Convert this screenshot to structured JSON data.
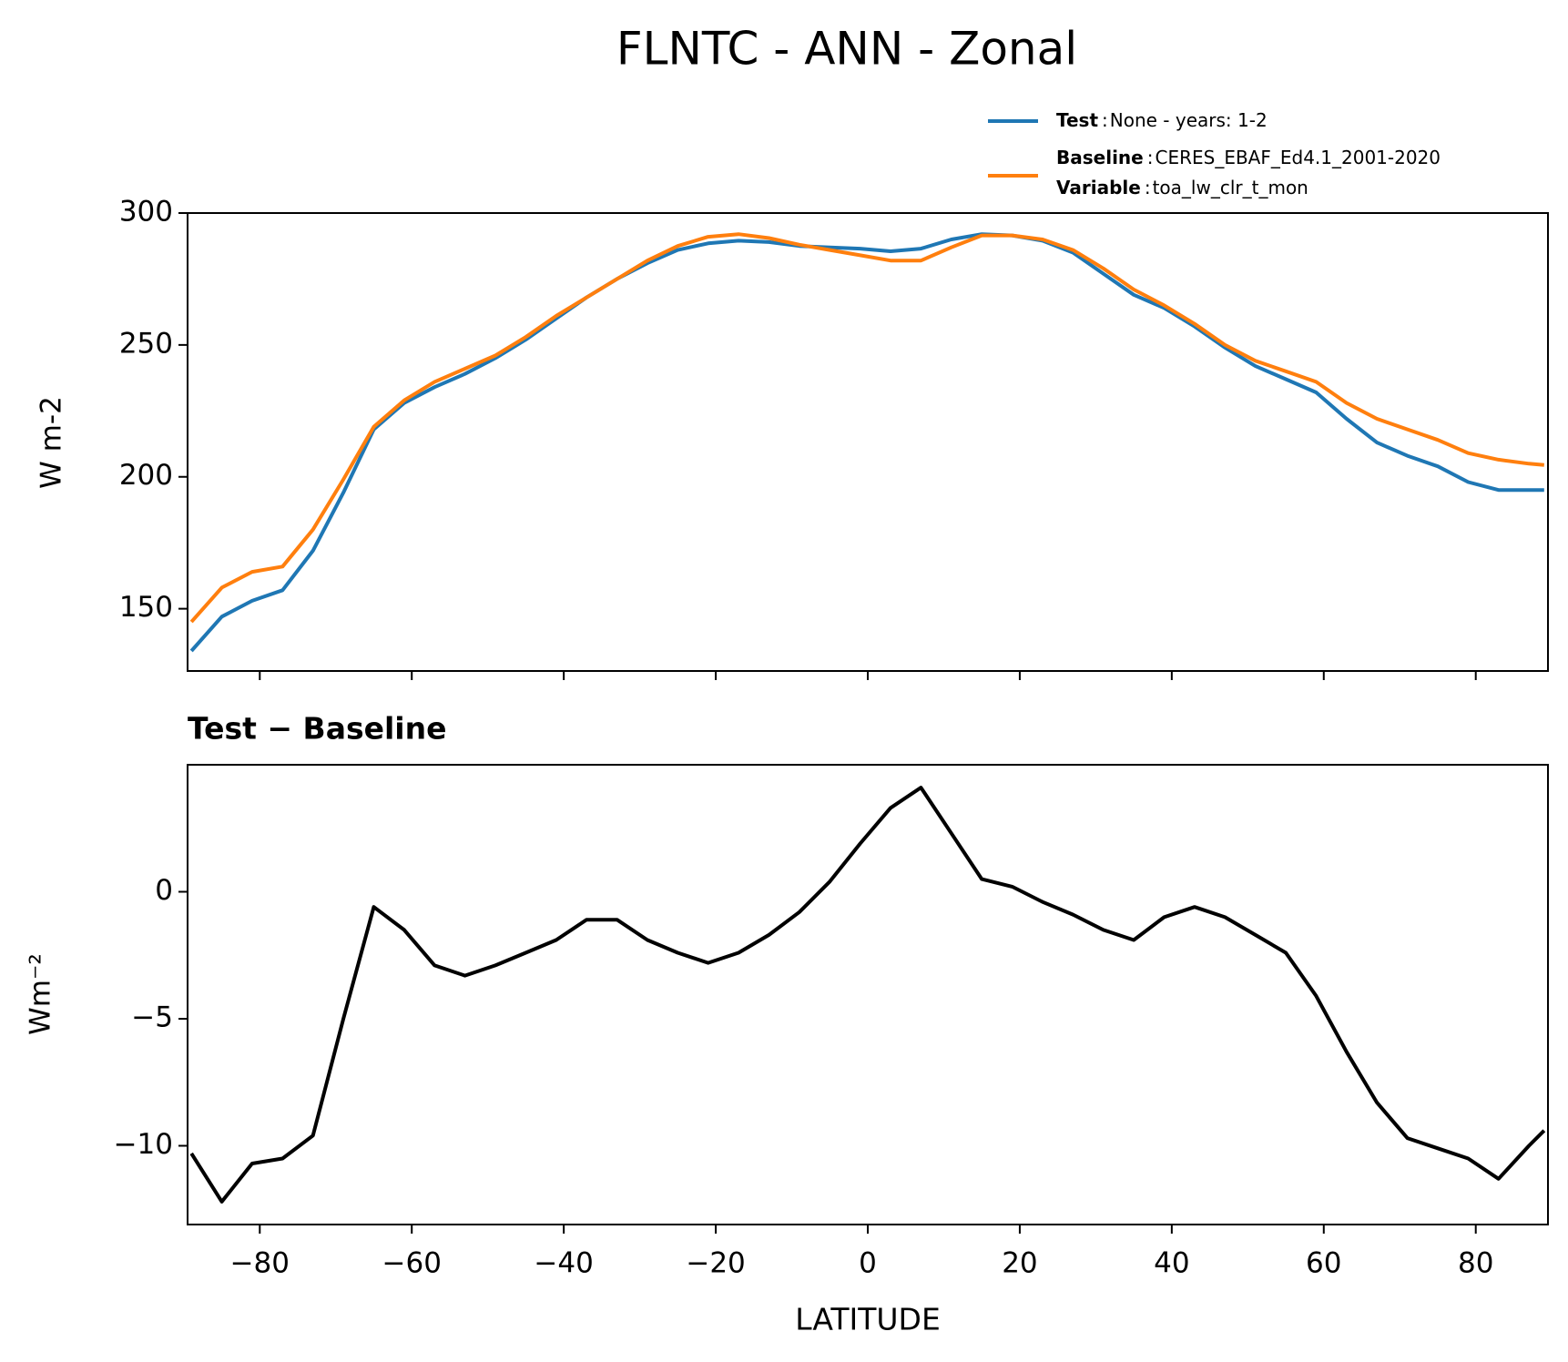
{
  "chart_data": [
    {
      "type": "line",
      "title": "FLNTC - ANN - Zonal",
      "ylabel": "W m-2",
      "x": [
        -89,
        -85,
        -81,
        -77,
        -73,
        -69,
        -65,
        -61,
        -57,
        -53,
        -49,
        -45,
        -41,
        -37,
        -33,
        -29,
        -25,
        -21,
        -17,
        -13,
        -9,
        -5,
        -1,
        3,
        7,
        11,
        15,
        19,
        23,
        27,
        31,
        35,
        39,
        43,
        47,
        51,
        55,
        59,
        63,
        67,
        71,
        75,
        79,
        83,
        87,
        89
      ],
      "separator": ":",
      "series": [
        {
          "name": "Test",
          "description": "None - years: 1-2",
          "color": "#1f77b4",
          "values": [
            134,
            147,
            153,
            157,
            172,
            194,
            218,
            228,
            234,
            239,
            245,
            252,
            260,
            268,
            275,
            281,
            286,
            288.5,
            289.5,
            289,
            287.5,
            287,
            286.5,
            285.5,
            286.5,
            290,
            292,
            291.5,
            289.5,
            285,
            277,
            269,
            264,
            257,
            249,
            242,
            237,
            232,
            222,
            213,
            208,
            204,
            198,
            195,
            195,
            195
          ]
        },
        {
          "name": "Baseline",
          "description": "CERES_EBAF_Ed4.1_2001-2020",
          "extra_name": "Variable",
          "extra_description": "toa_lw_clr_t_mon",
          "color": "#ff7f0e",
          "values": [
            145,
            158,
            164,
            166,
            180,
            199,
            219,
            229,
            236,
            241,
            246,
            253,
            261,
            268,
            275,
            282,
            287.5,
            291,
            292,
            290.5,
            288,
            286,
            284,
            282,
            282,
            287,
            291.5,
            291.5,
            290,
            286,
            279,
            271,
            265,
            258,
            250,
            244,
            240,
            236,
            228,
            222,
            218,
            214,
            209,
            206.5,
            205,
            204.5
          ]
        }
      ],
      "xlim": [
        -89.5,
        89.5
      ],
      "ylim": [
        126.4,
        300
      ],
      "xticks": [
        -80,
        -60,
        -40,
        -20,
        0,
        20,
        40,
        60,
        80
      ],
      "yticks": [
        150,
        200,
        250,
        300
      ]
    },
    {
      "type": "line",
      "title": "Test − Baseline",
      "xlabel": "LATITUDE",
      "ylabel": "Wm⁻²",
      "x": [
        -89,
        -85,
        -81,
        -77,
        -73,
        -69,
        -65,
        -61,
        -57,
        -53,
        -49,
        -45,
        -41,
        -37,
        -33,
        -29,
        -25,
        -21,
        -17,
        -13,
        -9,
        -5,
        -1,
        3,
        7,
        11,
        15,
        19,
        23,
        27,
        31,
        35,
        39,
        43,
        47,
        51,
        55,
        59,
        63,
        67,
        71,
        75,
        79,
        83,
        87,
        89
      ],
      "color": "#000000",
      "values": [
        -10.3,
        -12.2,
        -10.7,
        -10.5,
        -9.6,
        -5,
        -0.6,
        -1.5,
        -2.9,
        -3.3,
        -2.9,
        -2.4,
        -1.9,
        -1.1,
        -1.1,
        -1.9,
        -2.4,
        -2.8,
        -2.4,
        -1.7,
        -0.8,
        0.4,
        1.9,
        3.3,
        4.1,
        2.3,
        0.5,
        0.2,
        -0.4,
        -0.9,
        -1.5,
        -1.9,
        -1.0,
        -0.6,
        -1.0,
        -1.7,
        -2.4,
        -4.1,
        -6.3,
        -8.3,
        -9.7,
        -10.1,
        -10.5,
        -11.3,
        -10.0,
        -9.4
      ],
      "xlim": [
        -89.5,
        89.5
      ],
      "ylim": [
        -13.1,
        5.0
      ],
      "xticks": [
        {
          "value": -80,
          "label": "−80"
        },
        {
          "value": -60,
          "label": "−60"
        },
        {
          "value": -40,
          "label": "−40"
        },
        {
          "value": -20,
          "label": "−20"
        },
        0,
        20,
        40,
        60,
        80
      ],
      "yticks": [
        {
          "value": -10,
          "label": "−10"
        },
        {
          "value": -5,
          "label": "−5"
        },
        0
      ]
    }
  ]
}
